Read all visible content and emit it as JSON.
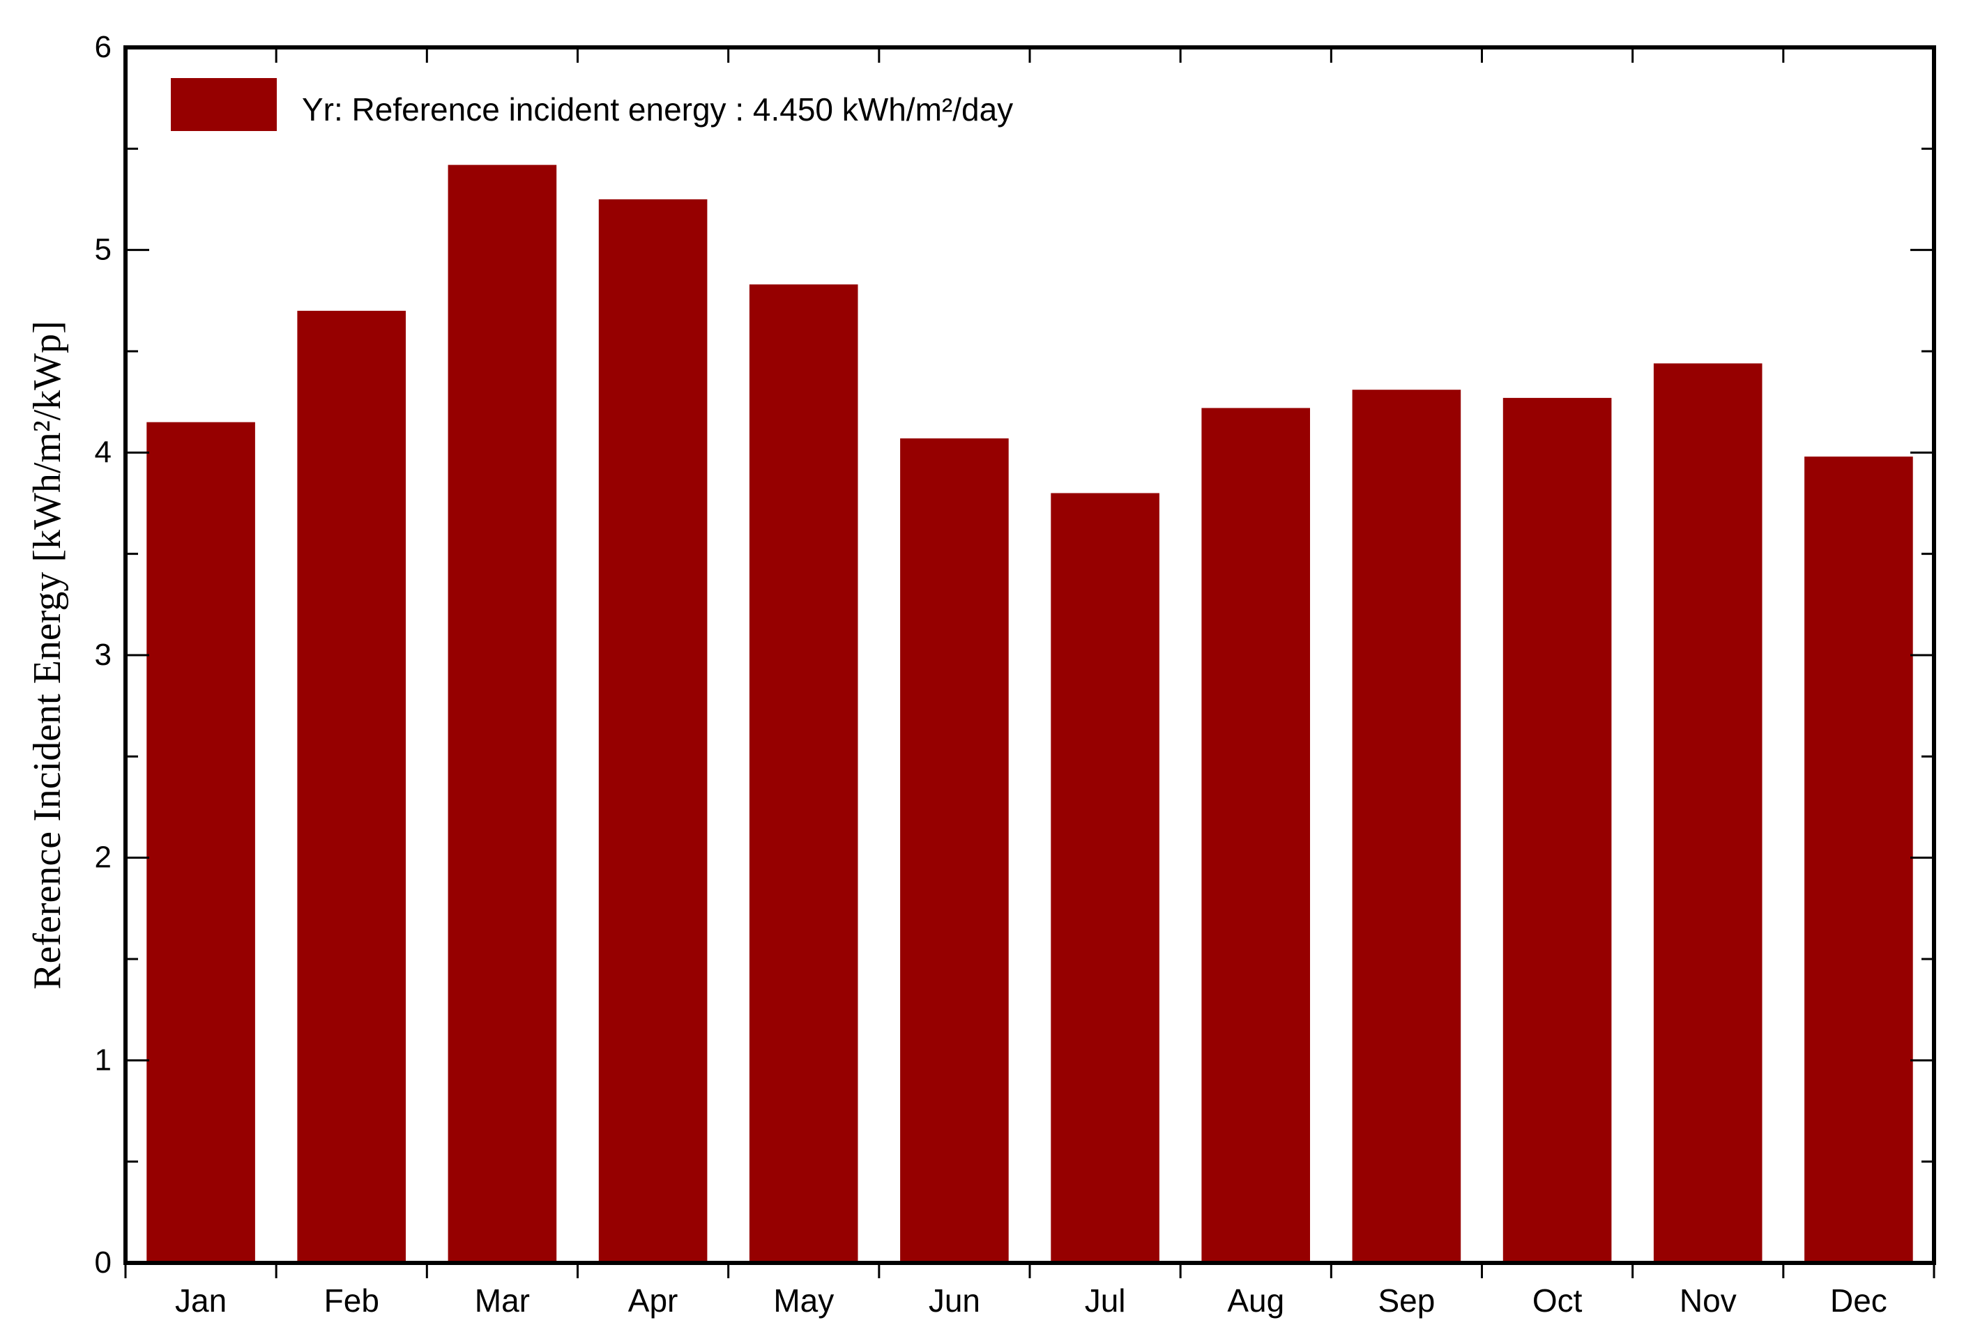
{
  "chart_data": {
    "type": "bar",
    "ylabel": "Reference Incident Energy [kWh/m²/kWp]",
    "xlabel": "",
    "ylim": [
      0,
      6
    ],
    "yticks": [
      0,
      1,
      2,
      3,
      4,
      5,
      6
    ],
    "categories": [
      "Jan",
      "Feb",
      "Mar",
      "Apr",
      "May",
      "Jun",
      "Jul",
      "Aug",
      "Sep",
      "Oct",
      "Nov",
      "Dec"
    ],
    "values": [
      4.15,
      4.7,
      5.42,
      5.25,
      4.83,
      4.07,
      3.8,
      4.22,
      4.31,
      4.27,
      4.44,
      3.98
    ],
    "bar_color": "#960000",
    "legend": {
      "label": "Yr: Reference incident energy :  4.450 kWh/m²/day",
      "position": "top-left"
    },
    "grid": false
  }
}
